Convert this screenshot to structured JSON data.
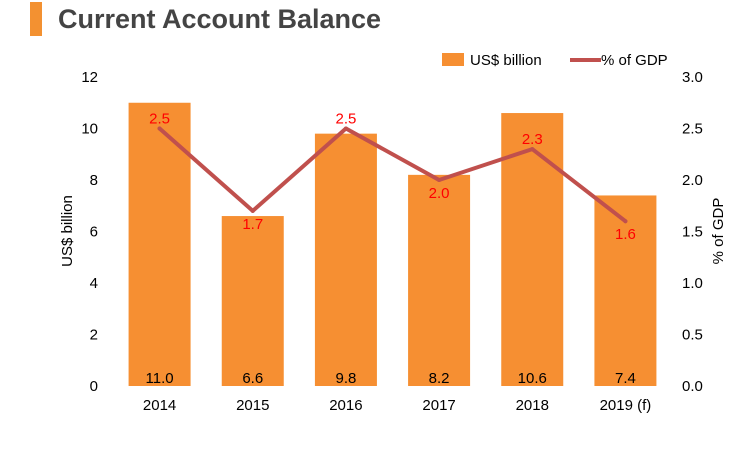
{
  "title": "Current Account Balance",
  "chart_data": {
    "type": "bar",
    "categories": [
      "2014",
      "2015",
      "2016",
      "2017",
      "2018",
      "2019 (f)"
    ],
    "series": [
      {
        "name": "US$ billion",
        "type": "bar",
        "axis": "left",
        "color": "#f68f32",
        "values": [
          11.0,
          6.6,
          9.8,
          8.2,
          10.6,
          7.4
        ],
        "labels": [
          "11.0",
          "6.6",
          "9.8",
          "8.2",
          "10.6",
          "7.4"
        ]
      },
      {
        "name": "% of GDP",
        "type": "line",
        "axis": "right",
        "color": "#c0504d",
        "values": [
          2.5,
          1.7,
          2.5,
          2.0,
          2.3,
          1.6
        ],
        "labels": [
          "2.5",
          "1.7",
          "2.5",
          "2.0",
          "2.3",
          "1.6"
        ]
      }
    ],
    "ylabel": "US$ billion",
    "y2label": "% of GDP",
    "ylim": [
      0,
      12
    ],
    "y2lim": [
      0,
      3.0
    ],
    "yticks": [
      "0",
      "2",
      "4",
      "6",
      "8",
      "10",
      "12"
    ],
    "y2ticks": [
      "0.0",
      "0.5",
      "1.0",
      "1.5",
      "2.0",
      "2.5",
      "3.0"
    ],
    "label_color": "#ff0000",
    "grid": false,
    "legend": "top-right"
  }
}
